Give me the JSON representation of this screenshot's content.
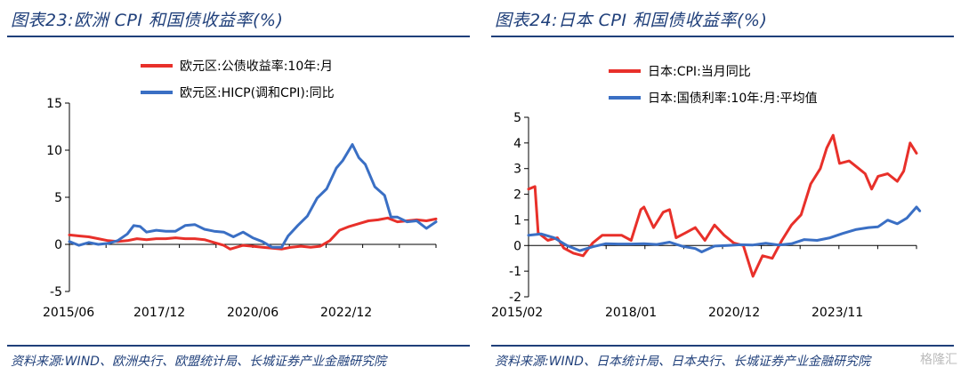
{
  "panels": [
    {
      "title": "图表23:欧洲 CPI 和国债收益率(%)",
      "source": "资料来源:WIND、欧洲央行、欧盟统计局、长城证券产业金融研究院",
      "chart_data": {
        "type": "line",
        "x_tick_labels": [
          "2015/06",
          "2017/12",
          "2020/06",
          "2022/12"
        ],
        "x_range": [
          "2015-06",
          "2024-12"
        ],
        "ylim": [
          -5,
          15
        ],
        "y_ticks": [
          -5,
          0,
          5,
          10,
          15
        ],
        "legend_position": "top-center",
        "grid": false,
        "series": [
          {
            "name": "欧元区:公债收益率:10年:月",
            "color": "#e8302a",
            "points": [
              [
                "2015-06",
                1.0
              ],
              [
                "2015-09",
                0.9
              ],
              [
                "2015-12",
                0.8
              ],
              [
                "2016-03",
                0.6
              ],
              [
                "2016-06",
                0.4
              ],
              [
                "2016-09",
                0.3
              ],
              [
                "2016-12",
                0.4
              ],
              [
                "2017-03",
                0.6
              ],
              [
                "2017-06",
                0.5
              ],
              [
                "2017-09",
                0.6
              ],
              [
                "2017-12",
                0.6
              ],
              [
                "2018-03",
                0.7
              ],
              [
                "2018-06",
                0.6
              ],
              [
                "2018-09",
                0.6
              ],
              [
                "2018-12",
                0.5
              ],
              [
                "2019-03",
                0.2
              ],
              [
                "2019-06",
                -0.1
              ],
              [
                "2019-08",
                -0.5
              ],
              [
                "2019-10",
                -0.3
              ],
              [
                "2019-12",
                -0.1
              ],
              [
                "2020-03",
                -0.2
              ],
              [
                "2020-06",
                -0.3
              ],
              [
                "2020-09",
                -0.4
              ],
              [
                "2020-12",
                -0.5
              ],
              [
                "2021-03",
                -0.3
              ],
              [
                "2021-06",
                -0.2
              ],
              [
                "2021-09",
                -0.3
              ],
              [
                "2021-12",
                -0.2
              ],
              [
                "2022-03",
                0.4
              ],
              [
                "2022-06",
                1.5
              ],
              [
                "2022-09",
                1.9
              ],
              [
                "2022-12",
                2.2
              ],
              [
                "2023-03",
                2.5
              ],
              [
                "2023-06",
                2.6
              ],
              [
                "2023-09",
                2.8
              ],
              [
                "2023-12",
                2.4
              ],
              [
                "2024-03",
                2.5
              ],
              [
                "2024-06",
                2.6
              ],
              [
                "2024-09",
                2.5
              ],
              [
                "2024-12",
                2.7
              ]
            ]
          },
          {
            "name": "欧元区:HICP(调和CPI):同比",
            "color": "#3a6fc4",
            "points": [
              [
                "2015-06",
                0.3
              ],
              [
                "2015-09",
                -0.1
              ],
              [
                "2015-12",
                0.2
              ],
              [
                "2016-03",
                0.0
              ],
              [
                "2016-06",
                0.1
              ],
              [
                "2016-09",
                0.4
              ],
              [
                "2016-12",
                1.1
              ],
              [
                "2017-02",
                2.0
              ],
              [
                "2017-04",
                1.9
              ],
              [
                "2017-06",
                1.3
              ],
              [
                "2017-09",
                1.5
              ],
              [
                "2017-12",
                1.4
              ],
              [
                "2018-03",
                1.4
              ],
              [
                "2018-06",
                2.0
              ],
              [
                "2018-09",
                2.1
              ],
              [
                "2018-12",
                1.6
              ],
              [
                "2019-03",
                1.4
              ],
              [
                "2019-06",
                1.3
              ],
              [
                "2019-09",
                0.8
              ],
              [
                "2019-12",
                1.3
              ],
              [
                "2020-03",
                0.7
              ],
              [
                "2020-06",
                0.3
              ],
              [
                "2020-09",
                -0.3
              ],
              [
                "2020-12",
                -0.3
              ],
              [
                "2021-02",
                0.9
              ],
              [
                "2021-05",
                2.0
              ],
              [
                "2021-08",
                3.0
              ],
              [
                "2021-11",
                4.9
              ],
              [
                "2022-02",
                5.9
              ],
              [
                "2022-05",
                8.1
              ],
              [
                "2022-07",
                8.9
              ],
              [
                "2022-10",
                10.6
              ],
              [
                "2022-12",
                9.2
              ],
              [
                "2023-02",
                8.5
              ],
              [
                "2023-05",
                6.1
              ],
              [
                "2023-08",
                5.2
              ],
              [
                "2023-10",
                2.9
              ],
              [
                "2023-12",
                2.9
              ],
              [
                "2024-03",
                2.4
              ],
              [
                "2024-06",
                2.5
              ],
              [
                "2024-09",
                1.7
              ],
              [
                "2024-12",
                2.4
              ]
            ]
          }
        ]
      }
    },
    {
      "title": "图表24:日本 CPI 和国债收益率(%)",
      "source": "资料来源:WIND、日本统计局、日本央行、长城证券产业金融研究院",
      "chart_data": {
        "type": "line",
        "x_tick_labels": [
          "2015/02",
          "2018/01",
          "2020/12",
          "2023/11"
        ],
        "x_range": [
          "2015-02",
          "2025-03"
        ],
        "ylim": [
          -2,
          5
        ],
        "y_ticks": [
          -2,
          -1,
          0,
          1,
          2,
          3,
          4,
          5
        ],
        "legend_position": "top-center",
        "grid": false,
        "series": [
          {
            "name": "日本:CPI:当月同比",
            "color": "#e8302a",
            "points": [
              [
                "2015-02",
                2.2
              ],
              [
                "2015-04",
                2.3
              ],
              [
                "2015-05",
                0.5
              ],
              [
                "2015-08",
                0.2
              ],
              [
                "2015-11",
                0.3
              ],
              [
                "2016-01",
                -0.1
              ],
              [
                "2016-04",
                -0.3
              ],
              [
                "2016-07",
                -0.4
              ],
              [
                "2016-10",
                0.1
              ],
              [
                "2017-01",
                0.4
              ],
              [
                "2017-04",
                0.4
              ],
              [
                "2017-07",
                0.4
              ],
              [
                "2017-10",
                0.2
              ],
              [
                "2018-01",
                1.4
              ],
              [
                "2018-02",
                1.5
              ],
              [
                "2018-05",
                0.7
              ],
              [
                "2018-08",
                1.3
              ],
              [
                "2018-10",
                1.4
              ],
              [
                "2018-12",
                0.3
              ],
              [
                "2019-03",
                0.5
              ],
              [
                "2019-06",
                0.7
              ],
              [
                "2019-09",
                0.2
              ],
              [
                "2019-12",
                0.8
              ],
              [
                "2020-03",
                0.4
              ],
              [
                "2020-06",
                0.1
              ],
              [
                "2020-09",
                0.0
              ],
              [
                "2020-12",
                -1.2
              ],
              [
                "2021-03",
                -0.4
              ],
              [
                "2021-06",
                -0.5
              ],
              [
                "2021-09",
                0.2
              ],
              [
                "2021-12",
                0.8
              ],
              [
                "2022-03",
                1.2
              ],
              [
                "2022-06",
                2.4
              ],
              [
                "2022-09",
                3.0
              ],
              [
                "2022-11",
                3.8
              ],
              [
                "2023-01",
                4.3
              ],
              [
                "2023-03",
                3.2
              ],
              [
                "2023-06",
                3.3
              ],
              [
                "2023-09",
                3.0
              ],
              [
                "2023-11",
                2.8
              ],
              [
                "2024-01",
                2.2
              ],
              [
                "2024-03",
                2.7
              ],
              [
                "2024-06",
                2.8
              ],
              [
                "2024-09",
                2.5
              ],
              [
                "2024-11",
                2.9
              ],
              [
                "2025-01",
                4.0
              ],
              [
                "2025-03",
                3.6
              ]
            ]
          },
          {
            "name": "日本:国债利率:10年:月:平均值",
            "color": "#3a6fc4",
            "points": [
              [
                "2015-02",
                0.4
              ],
              [
                "2015-06",
                0.45
              ],
              [
                "2015-10",
                0.3
              ],
              [
                "2016-02",
                0.0
              ],
              [
                "2016-06",
                -0.2
              ],
              [
                "2016-10",
                -0.05
              ],
              [
                "2017-02",
                0.07
              ],
              [
                "2017-06",
                0.06
              ],
              [
                "2017-10",
                0.06
              ],
              [
                "2018-02",
                0.07
              ],
              [
                "2018-06",
                0.04
              ],
              [
                "2018-10",
                0.13
              ],
              [
                "2019-02",
                -0.03
              ],
              [
                "2019-06",
                -0.12
              ],
              [
                "2019-08",
                -0.25
              ],
              [
                "2019-12",
                -0.02
              ],
              [
                "2020-04",
                0.0
              ],
              [
                "2020-08",
                0.03
              ],
              [
                "2020-12",
                0.02
              ],
              [
                "2021-04",
                0.09
              ],
              [
                "2021-08",
                0.02
              ],
              [
                "2021-12",
                0.07
              ],
              [
                "2022-04",
                0.23
              ],
              [
                "2022-08",
                0.2
              ],
              [
                "2022-12",
                0.3
              ],
              [
                "2023-04",
                0.47
              ],
              [
                "2023-08",
                0.62
              ],
              [
                "2023-12",
                0.7
              ],
              [
                "2024-03",
                0.73
              ],
              [
                "2024-06",
                0.99
              ],
              [
                "2024-09",
                0.85
              ],
              [
                "2024-12",
                1.07
              ],
              [
                "2025-03",
                1.5
              ],
              [
                "2025-04",
                1.35
              ]
            ]
          }
        ]
      }
    }
  ],
  "watermark": "格隆汇"
}
